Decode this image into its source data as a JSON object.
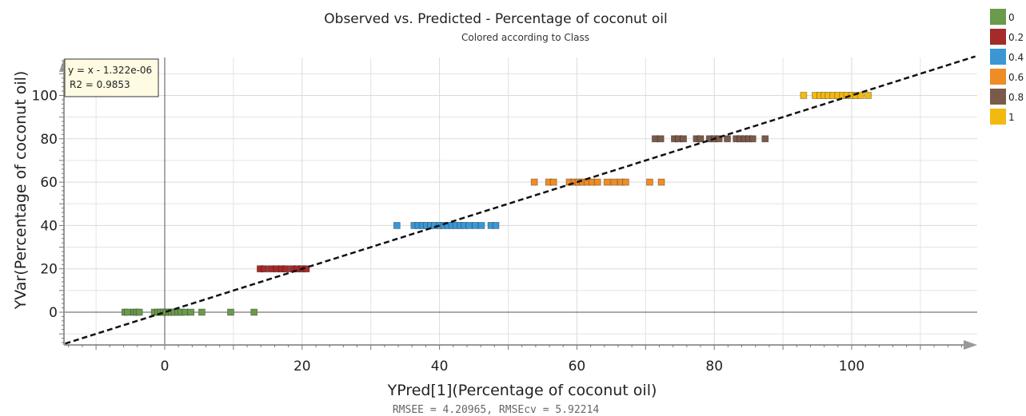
{
  "chart_data": {
    "type": "scatter",
    "title": "Observed vs. Predicted - Percentage of coconut oil",
    "subtitle": "Colored according to Class",
    "xlabel": "YPred[1](Percentage of coconut oil)",
    "ylabel": "YVar(Percentage of coconut oil)",
    "xlim": [
      -15,
      118
    ],
    "ylim": [
      -15,
      118
    ],
    "x_ticks": [
      "0",
      "20",
      "40",
      "60",
      "80",
      "100"
    ],
    "y_ticks": [
      "0",
      "20",
      "40",
      "60",
      "80",
      "100"
    ],
    "grid": true,
    "legend_position": "right",
    "regression": {
      "equation": "y = x - 1.322e-06",
      "r2": "R2 = 0.9853",
      "slope": 1,
      "intercept": 0
    },
    "footer": "RMSEE = 4.20965, RMSEcv = 5.92214",
    "series": [
      {
        "name": "0",
        "color": "#6a9a4a",
        "x": [
          -5.8,
          -5.4,
          -4.5,
          -4.1,
          -3.7,
          -1.5,
          -1.0,
          -0.6,
          -0.2,
          0.2,
          0.6,
          1.0,
          1.4,
          1.9,
          2.4,
          3.0,
          3.8,
          5.4,
          9.6,
          13.0
        ],
        "y": [
          0,
          0,
          0,
          0,
          0,
          0,
          0,
          0,
          0,
          0,
          0,
          0,
          0,
          0,
          0,
          0,
          0,
          0,
          0,
          0
        ]
      },
      {
        "name": "0.2",
        "color": "#a52a2a",
        "x": [
          13.9,
          14.5,
          15.5,
          16.3,
          17.0,
          17.6,
          18.6,
          19.3,
          20.0,
          20.6
        ],
        "y": [
          20,
          20,
          20,
          20,
          20,
          20,
          20,
          20,
          20,
          20
        ]
      },
      {
        "name": "0.4",
        "color": "#3a97d4",
        "x": [
          33.8,
          36.3,
          36.9,
          37.5,
          38.1,
          38.7,
          39.3,
          40.0,
          40.6,
          41.2,
          41.8,
          42.4,
          43.0,
          43.6,
          44.3,
          45.2,
          46.1,
          47.5,
          48.2
        ],
        "y": [
          40,
          40,
          40,
          40,
          40,
          40,
          40,
          40,
          40,
          40,
          40,
          40,
          40,
          40,
          40,
          40,
          40,
          40,
          40
        ]
      },
      {
        "name": "0.6",
        "color": "#ef8c25",
        "x": [
          53.8,
          55.9,
          56.6,
          58.9,
          59.6,
          60.2,
          60.8,
          61.5,
          62.2,
          63.0,
          64.4,
          65.4,
          66.4,
          67.1,
          70.6,
          72.3
        ],
        "y": [
          60,
          60,
          60,
          60,
          60,
          60,
          60,
          60,
          60,
          60,
          60,
          60,
          60,
          60,
          60,
          60
        ]
      },
      {
        "name": "0.8",
        "color": "#7a5a4a",
        "x": [
          71.4,
          72.2,
          74.2,
          74.8,
          75.5,
          77.4,
          78.0,
          79.3,
          80.0,
          80.7,
          81.9,
          83.2,
          83.8,
          84.4,
          85.0,
          85.6,
          87.4
        ],
        "y": [
          80,
          80,
          80,
          80,
          80,
          80,
          80,
          80,
          80,
          80,
          80,
          80,
          80,
          80,
          80,
          80,
          80
        ]
      },
      {
        "name": "1",
        "color": "#f2b90f",
        "x": [
          93.0,
          94.7,
          95.4,
          96.0,
          96.6,
          97.3,
          98.0,
          98.7,
          99.3,
          100.0,
          100.6,
          101.3,
          102.4
        ],
        "y": [
          100,
          100,
          100,
          100,
          100,
          100,
          100,
          100,
          100,
          100,
          100,
          100,
          100
        ]
      }
    ]
  }
}
